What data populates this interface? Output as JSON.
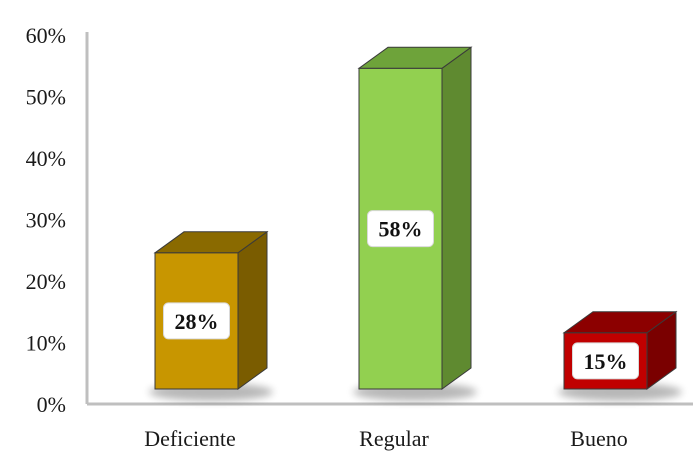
{
  "chart_data": {
    "type": "bar",
    "style": "3d-column",
    "categories": [
      "Deficiente",
      "Regular",
      "Bueno"
    ],
    "values": [
      28,
      58,
      15
    ],
    "data_labels": [
      "28%",
      "58%",
      "15%"
    ],
    "colors": {
      "Deficiente": {
        "front": "#c89600",
        "side": "#7a5c00",
        "top": "#8a6a00"
      },
      "Regular": {
        "front": "#92d050",
        "side": "#5f8a30",
        "top": "#6ea33a"
      },
      "Bueno": {
        "front": "#c00000",
        "side": "#7a0000",
        "top": "#8c0000"
      }
    },
    "axis_color": "#bfbfbf",
    "ylim": [
      0,
      60
    ],
    "y_ticks": [
      0,
      10,
      20,
      30,
      40,
      50,
      60
    ],
    "y_tick_labels": [
      "0%",
      "10%",
      "20%",
      "30%",
      "40%",
      "50%",
      "60%"
    ],
    "grid": false,
    "legend": "none",
    "title": "",
    "xlabel": "",
    "ylabel": ""
  }
}
